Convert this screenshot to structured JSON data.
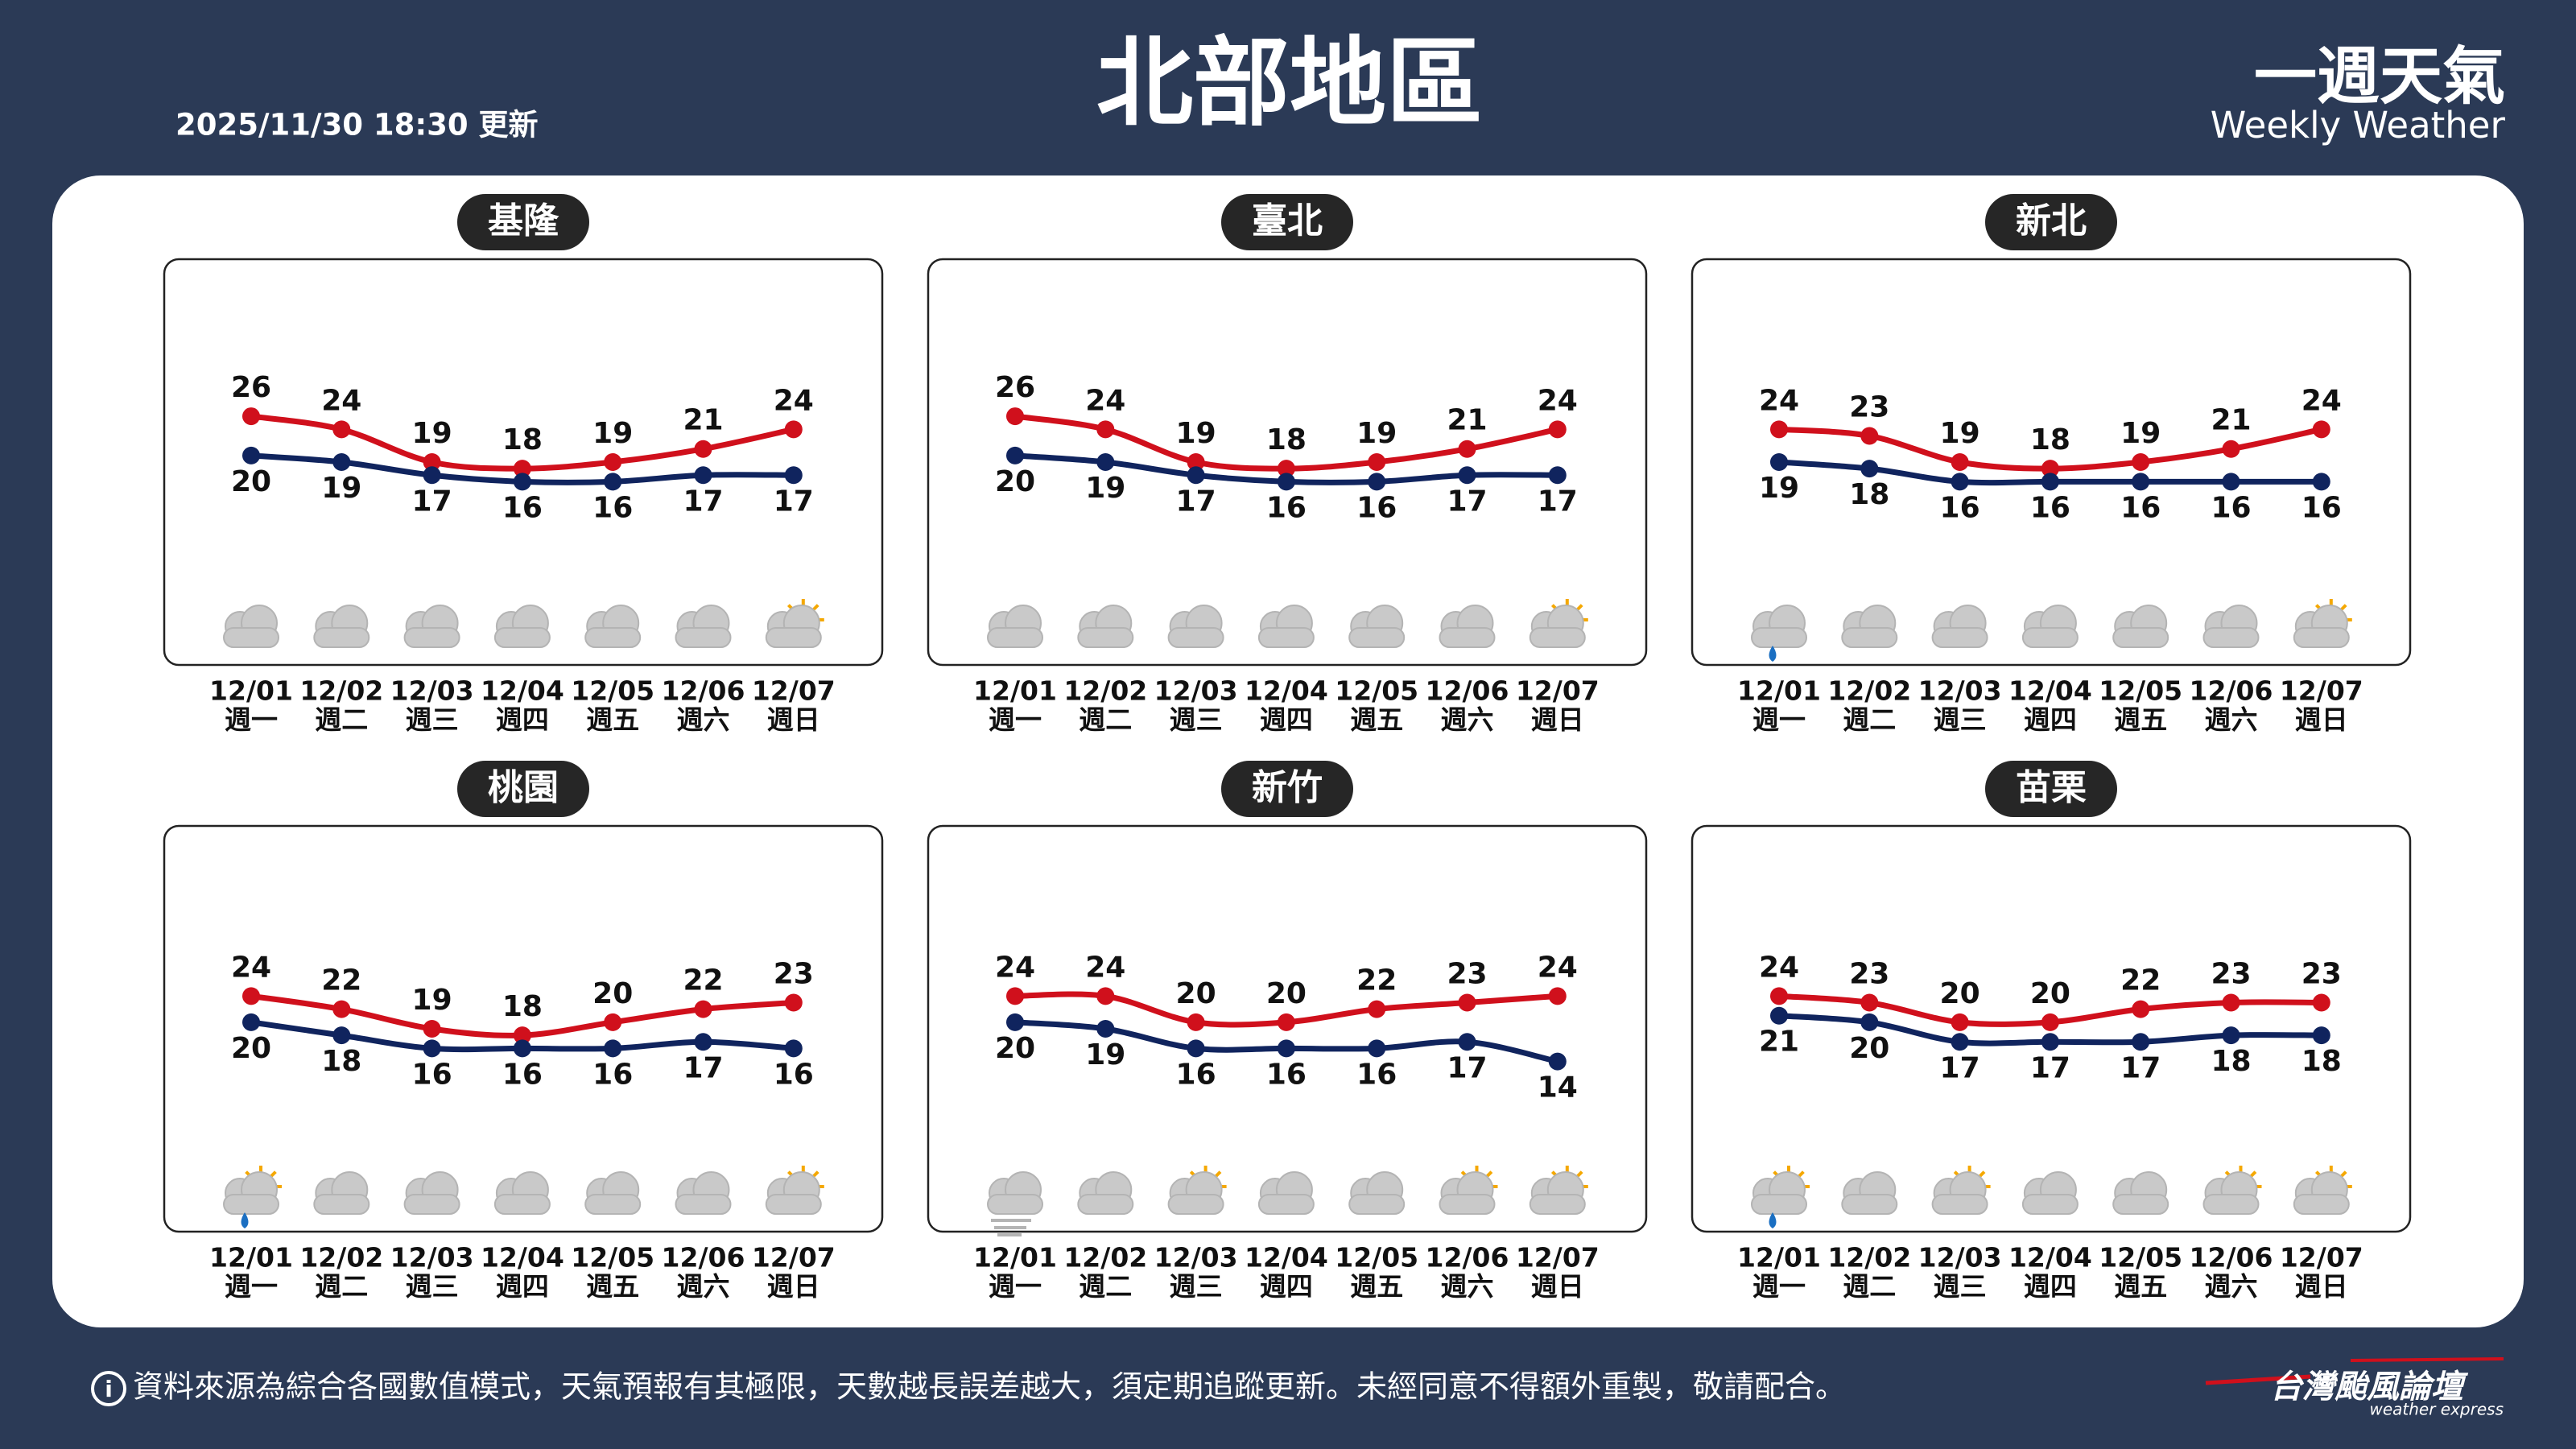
{
  "header": {
    "title": "北部地區",
    "updated": "2025/11/30 18:30 更新",
    "brand": "一週天氣",
    "brand_en": "Weekly Weather"
  },
  "footer": {
    "note": "資料來源為綜合各國數值模式，天氣預報有其極限，天數越長誤差越大，須定期追蹤更新。未經同意不得額外重製，敬請配合。",
    "logo": "台灣颱風論壇",
    "logo_en": "weather express"
  },
  "chart_data": [
    {
      "type": "line",
      "title": "基隆",
      "categories": [
        "12/01",
        "12/02",
        "12/03",
        "12/04",
        "12/05",
        "12/06",
        "12/07"
      ],
      "weekdays": [
        "週一",
        "週二",
        "週三",
        "週四",
        "週五",
        "週六",
        "週日"
      ],
      "series": [
        {
          "color": "#d0101c",
          "values": [
            26,
            24,
            19,
            18,
            19,
            21,
            24
          ]
        },
        {
          "color": "#10245e",
          "values": [
            20,
            19,
            17,
            16,
            16,
            17,
            17
          ]
        }
      ],
      "icons": [
        "cloudy",
        "cloudy",
        "cloudy",
        "cloudy",
        "cloudy",
        "cloudy",
        "partly-sunny"
      ],
      "ylim": [
        -12,
        50
      ]
    },
    {
      "type": "line",
      "title": "臺北",
      "categories": [
        "12/01",
        "12/02",
        "12/03",
        "12/04",
        "12/05",
        "12/06",
        "12/07"
      ],
      "weekdays": [
        "週一",
        "週二",
        "週三",
        "週四",
        "週五",
        "週六",
        "週日"
      ],
      "series": [
        {
          "color": "#d0101c",
          "values": [
            26,
            24,
            19,
            18,
            19,
            21,
            24
          ]
        },
        {
          "color": "#10245e",
          "values": [
            20,
            19,
            17,
            16,
            16,
            17,
            17
          ]
        }
      ],
      "icons": [
        "cloudy",
        "cloudy",
        "cloudy",
        "cloudy",
        "cloudy",
        "cloudy",
        "partly-sunny"
      ],
      "ylim": [
        -12,
        50
      ]
    },
    {
      "type": "line",
      "title": "新北",
      "categories": [
        "12/01",
        "12/02",
        "12/03",
        "12/04",
        "12/05",
        "12/06",
        "12/07"
      ],
      "weekdays": [
        "週一",
        "週二",
        "週三",
        "週四",
        "週五",
        "週六",
        "週日"
      ],
      "series": [
        {
          "color": "#d0101c",
          "values": [
            24,
            23,
            19,
            18,
            19,
            21,
            24
          ]
        },
        {
          "color": "#10245e",
          "values": [
            19,
            18,
            16,
            16,
            16,
            16,
            16
          ]
        }
      ],
      "icons": [
        "rain",
        "cloudy",
        "cloudy",
        "cloudy",
        "cloudy",
        "cloudy",
        "partly-sunny"
      ],
      "ylim": [
        -12,
        50
      ]
    },
    {
      "type": "line",
      "title": "桃園",
      "categories": [
        "12/01",
        "12/02",
        "12/03",
        "12/04",
        "12/05",
        "12/06",
        "12/07"
      ],
      "weekdays": [
        "週一",
        "週二",
        "週三",
        "週四",
        "週五",
        "週六",
        "週日"
      ],
      "series": [
        {
          "color": "#d0101c",
          "values": [
            24,
            22,
            19,
            18,
            20,
            22,
            23
          ]
        },
        {
          "color": "#10245e",
          "values": [
            20,
            18,
            16,
            16,
            16,
            17,
            16
          ]
        }
      ],
      "icons": [
        "sun-rain",
        "cloudy",
        "cloudy",
        "cloudy",
        "cloudy",
        "cloudy",
        "partly-sunny"
      ],
      "ylim": [
        -12,
        50
      ]
    },
    {
      "type": "line",
      "title": "新竹",
      "categories": [
        "12/01",
        "12/02",
        "12/03",
        "12/04",
        "12/05",
        "12/06",
        "12/07"
      ],
      "weekdays": [
        "週一",
        "週二",
        "週三",
        "週四",
        "週五",
        "週六",
        "週日"
      ],
      "series": [
        {
          "color": "#d0101c",
          "values": [
            24,
            24,
            20,
            20,
            22,
            23,
            24
          ]
        },
        {
          "color": "#10245e",
          "values": [
            20,
            19,
            16,
            16,
            16,
            17,
            14
          ]
        }
      ],
      "icons": [
        "fog",
        "cloudy",
        "partly-sunny",
        "cloudy",
        "cloudy",
        "partly-sunny",
        "partly-sunny"
      ],
      "ylim": [
        -12,
        50
      ]
    },
    {
      "type": "line",
      "title": "苗栗",
      "categories": [
        "12/01",
        "12/02",
        "12/03",
        "12/04",
        "12/05",
        "12/06",
        "12/07"
      ],
      "weekdays": [
        "週一",
        "週二",
        "週三",
        "週四",
        "週五",
        "週六",
        "週日"
      ],
      "series": [
        {
          "color": "#d0101c",
          "values": [
            24,
            23,
            20,
            20,
            22,
            23,
            23
          ]
        },
        {
          "color": "#10245e",
          "values": [
            21,
            20,
            17,
            17,
            17,
            18,
            18
          ]
        }
      ],
      "icons": [
        "sun-rain",
        "cloudy",
        "partly-sunny",
        "cloudy",
        "cloudy",
        "partly-sunny",
        "partly-sunny"
      ],
      "ylim": [
        -12,
        50
      ]
    }
  ]
}
